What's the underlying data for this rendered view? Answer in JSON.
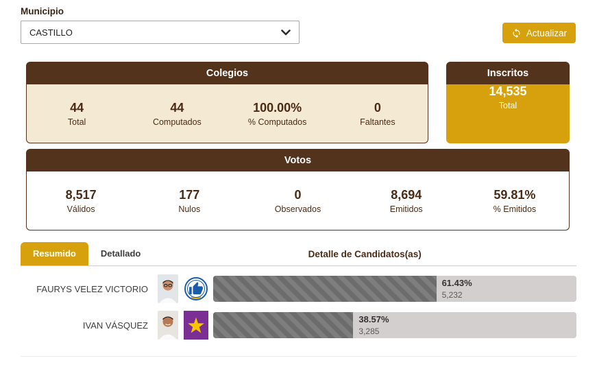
{
  "filters": {
    "municipio_label": "Municipio",
    "municipio_selected": "CASTILLO"
  },
  "actions": {
    "refresh_label": "Actualizar"
  },
  "panels": {
    "colegios": {
      "title": "Colegios",
      "stats": [
        {
          "value": "44",
          "label": "Total"
        },
        {
          "value": "44",
          "label": "Computados"
        },
        {
          "value": "100.00%",
          "label": "% Computados"
        },
        {
          "value": "0",
          "label": "Faltantes"
        }
      ]
    },
    "inscritos": {
      "title": "Inscritos",
      "value": "14,535",
      "label": "Total"
    },
    "votos": {
      "title": "Votos",
      "stats": [
        {
          "value": "8,517",
          "label": "Válidos"
        },
        {
          "value": "177",
          "label": "Nulos"
        },
        {
          "value": "0",
          "label": "Observados"
        },
        {
          "value": "8,694",
          "label": "Emitidos"
        },
        {
          "value": "59.81%",
          "label": "% Emitidos"
        }
      ]
    }
  },
  "tabs": {
    "resumido": "Resumido",
    "detallado": "Detallado",
    "active": "Resumido",
    "candidates_title": "Detalle de Candidatos(as)"
  },
  "candidates": [
    {
      "name": "FAURYS VELEZ VICTORIO",
      "percent": "61.43%",
      "percent_value": 61.43,
      "votes": "5,232",
      "party_icon": "thumbs-up-circle-logo",
      "party_primary_color": "#1a5ca8",
      "party_background_color": "#ffffff"
    },
    {
      "name": "IVAN VÁSQUEZ",
      "percent": "38.57%",
      "percent_value": 38.57,
      "votes": "3,285",
      "party_icon": "star-square-logo",
      "party_primary_color": "#f7c600",
      "party_background_color": "#7b2f94"
    }
  ],
  "colors": {
    "header_brown": "#54331d",
    "panel_cream": "#f4e9d2",
    "accent_gold": "#d7a10e",
    "bar_track": "#d3cfcf",
    "bar_fill": "#6c6c6c",
    "text_brown": "#4a2b15"
  }
}
